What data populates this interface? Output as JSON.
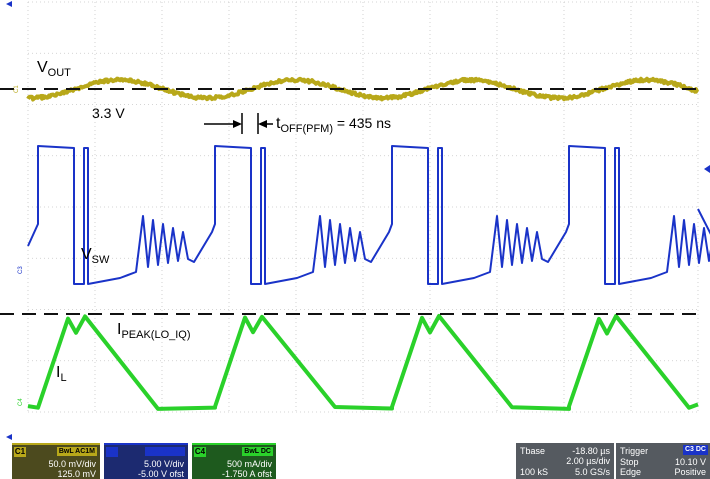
{
  "chart_data": {
    "type": "line",
    "title": "",
    "xlabel": "",
    "ylabel": "",
    "grid": true,
    "divisions": {
      "x": 10,
      "y": 8
    },
    "series": [
      {
        "name": "VOUT",
        "channel": "C1",
        "color": "#b8a81a",
        "baseline_div": 7.1,
        "ripple_div": 0.4,
        "period_us": 3.55,
        "description_points_div": [
          [
            0,
            7.05
          ],
          [
            0.7,
            6.95
          ],
          [
            1.9,
            7.3
          ],
          [
            4.1,
            6.95
          ],
          [
            5.3,
            7.3
          ],
          [
            7.6,
            6.95
          ],
          [
            8.8,
            7.3
          ],
          [
            10,
            7.1
          ]
        ]
      },
      {
        "name": "VSW",
        "channel": "C3",
        "color": "#1a33c8"
      },
      {
        "name": "IL",
        "channel": "C4",
        "color": "#2ad12a"
      }
    ],
    "annotations": [
      {
        "label": "V",
        "sub": "OUT"
      },
      {
        "label": "3.3 V",
        "sub": ""
      },
      {
        "label": "t",
        "sub": "OFF(PFM)",
        "suffix": " = 435 ns"
      },
      {
        "label": "V",
        "sub": "SW"
      },
      {
        "label": "I",
        "sub": "PEAK(LO_IQ)"
      },
      {
        "label": "I",
        "sub": "L"
      }
    ]
  },
  "markers": {
    "c1": "C1",
    "c3": "C3",
    "c4": "C4"
  },
  "status_bar": {
    "ch1": {
      "tag": "C1",
      "badge1": "BwL",
      "badge2": "AC1M",
      "scale": "50.0 mV/div",
      "offset": "125.0 mV"
    },
    "ch3": {
      "tag": "C3",
      "badge1": "BwL",
      "badge2": "DC1M",
      "scale": "5.00 V/div",
      "offset": "-5.00 V ofst"
    },
    "ch4": {
      "tag": "C4",
      "badge1": "BwL",
      "badge2": "DC",
      "scale": "500 mA/div",
      "offset": "-1.750 A ofst"
    },
    "timebase": {
      "label": "Tbase",
      "delay": "-18.80 µs",
      "scale": "2.00 µs/div",
      "samples": "100 kS",
      "rate": "5.0 GS/s"
    },
    "trigger": {
      "label": "Trigger",
      "badge": "C3 DC",
      "mode": "Stop",
      "level": "10.10 V",
      "type": "Edge",
      "slope": "Positive"
    }
  }
}
